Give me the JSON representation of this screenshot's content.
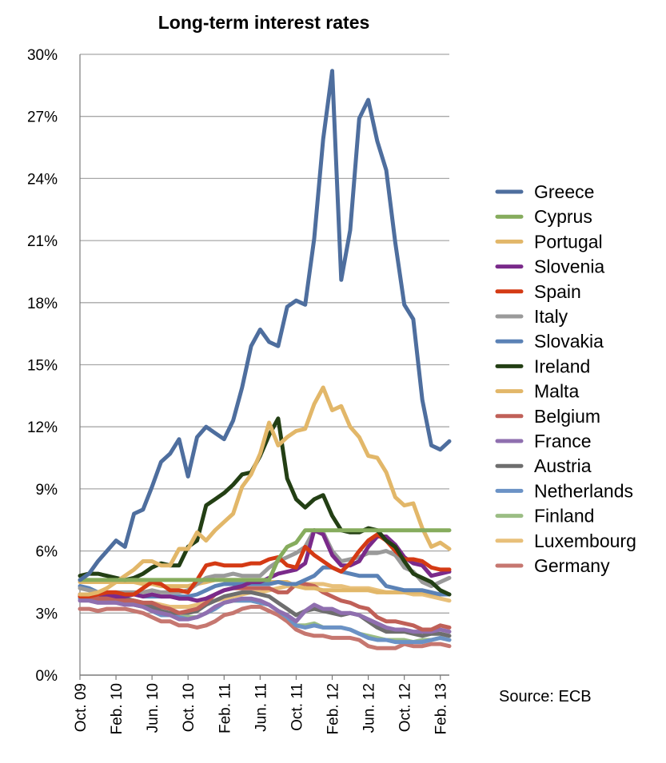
{
  "chart_data": {
    "type": "line",
    "title": "Long-term interest rates",
    "source": "Source: ECB",
    "y_ticks": [
      "0%",
      "3%",
      "6%",
      "9%",
      "12%",
      "15%",
      "18%",
      "21%",
      "24%",
      "27%",
      "30%"
    ],
    "ylim": [
      0,
      30
    ],
    "x_tick_labels": [
      "Oct. 09",
      "Feb. 10",
      "Jun. 10",
      "Oct. 10",
      "Feb. 11",
      "Jun. 11",
      "Oct. 11",
      "Feb. 12",
      "Jun. 12",
      "Oct. 12",
      "Feb. 13"
    ],
    "x_tick_index": [
      0,
      4,
      8,
      12,
      16,
      20,
      24,
      28,
      32,
      36,
      40
    ],
    "x_count": 42,
    "grid": true,
    "legend_position": "right",
    "series": [
      {
        "name": "Germany",
        "color": "#c67770",
        "values": [
          3.2,
          3.2,
          3.1,
          3.2,
          3.2,
          3.2,
          3.1,
          3.0,
          2.8,
          2.6,
          2.6,
          2.4,
          2.4,
          2.3,
          2.4,
          2.6,
          2.9,
          3.0,
          3.2,
          3.3,
          3.3,
          3.1,
          2.9,
          2.6,
          2.2,
          2.0,
          1.9,
          1.9,
          1.8,
          1.8,
          1.8,
          1.7,
          1.4,
          1.3,
          1.3,
          1.3,
          1.5,
          1.4,
          1.4,
          1.5,
          1.5,
          1.4
        ]
      },
      {
        "name": "Luxembourg",
        "color": "#e8c07a",
        "values": [
          3.8,
          3.8,
          3.7,
          3.7,
          3.6,
          3.6,
          3.6,
          3.5,
          3.5,
          3.4,
          3.3,
          3.3,
          3.3,
          3.4,
          3.5,
          3.6,
          3.7,
          3.8,
          3.9,
          4.0,
          4.0,
          4.1,
          4.2,
          4.3,
          4.3,
          4.4,
          4.4,
          4.4,
          4.3,
          4.3,
          4.2,
          4.2,
          4.2,
          4.1,
          4.0,
          4.0,
          4.0,
          3.9,
          3.9,
          3.8,
          3.7,
          3.6
        ]
      },
      {
        "name": "Finland",
        "color": "#9bbd84",
        "values": [
          3.8,
          3.8,
          3.7,
          3.7,
          3.6,
          3.5,
          3.4,
          3.3,
          3.1,
          2.9,
          2.9,
          2.8,
          2.8,
          2.8,
          3.0,
          3.2,
          3.5,
          3.6,
          3.6,
          3.6,
          3.5,
          3.4,
          3.1,
          2.8,
          2.4,
          2.4,
          2.5,
          2.3,
          2.3,
          2.3,
          2.2,
          2.0,
          1.9,
          1.8,
          1.7,
          1.7,
          1.7,
          1.6,
          1.7,
          1.7,
          1.8,
          1.7
        ]
      },
      {
        "name": "Netherlands",
        "color": "#6b92c6",
        "values": [
          3.7,
          3.7,
          3.6,
          3.6,
          3.5,
          3.5,
          3.4,
          3.3,
          3.1,
          2.9,
          2.9,
          2.8,
          2.7,
          2.8,
          3.0,
          3.2,
          3.5,
          3.6,
          3.6,
          3.6,
          3.5,
          3.4,
          3.1,
          2.8,
          2.4,
          2.3,
          2.4,
          2.3,
          2.3,
          2.3,
          2.2,
          2.0,
          1.8,
          1.7,
          1.7,
          1.6,
          1.6,
          1.6,
          1.6,
          1.7,
          1.8,
          1.7
        ]
      },
      {
        "name": "Austria",
        "color": "#6e6e6e",
        "values": [
          3.9,
          3.9,
          3.9,
          3.8,
          3.8,
          3.7,
          3.6,
          3.5,
          3.3,
          3.1,
          3.0,
          3.0,
          3.0,
          3.1,
          3.4,
          3.6,
          3.8,
          3.9,
          4.0,
          4.0,
          3.9,
          3.8,
          3.5,
          3.2,
          2.9,
          3.1,
          3.2,
          3.1,
          3.0,
          2.9,
          3.0,
          2.9,
          2.6,
          2.3,
          2.1,
          2.1,
          2.1,
          2.0,
          1.9,
          2.0,
          2.0,
          1.9
        ]
      },
      {
        "name": "France",
        "color": "#8f6faf",
        "values": [
          3.6,
          3.6,
          3.5,
          3.5,
          3.5,
          3.4,
          3.4,
          3.3,
          3.1,
          3.0,
          2.9,
          2.7,
          2.7,
          2.8,
          3.0,
          3.3,
          3.5,
          3.6,
          3.7,
          3.7,
          3.6,
          3.4,
          3.1,
          2.9,
          2.6,
          3.1,
          3.4,
          3.2,
          3.2,
          3.0,
          3.0,
          2.9,
          2.7,
          2.5,
          2.3,
          2.2,
          2.2,
          2.1,
          2.1,
          2.1,
          2.2,
          2.1
        ]
      },
      {
        "name": "Belgium",
        "color": "#c06058",
        "values": [
          3.8,
          3.8,
          3.7,
          3.7,
          3.7,
          3.6,
          3.6,
          3.5,
          3.5,
          3.3,
          3.2,
          3.0,
          3.1,
          3.2,
          3.5,
          3.9,
          4.1,
          4.2,
          4.2,
          4.2,
          4.2,
          4.2,
          4.0,
          4.0,
          4.4,
          4.4,
          4.3,
          4.0,
          3.8,
          3.6,
          3.5,
          3.3,
          3.2,
          2.8,
          2.6,
          2.6,
          2.5,
          2.4,
          2.2,
          2.2,
          2.4,
          2.3
        ]
      },
      {
        "name": "Malta",
        "color": "#e2b769",
        "values": [
          4.5,
          4.5,
          4.5,
          4.5,
          4.5,
          4.5,
          4.5,
          4.4,
          4.4,
          4.3,
          4.3,
          4.3,
          4.3,
          4.4,
          4.5,
          4.6,
          4.6,
          4.6,
          4.6,
          4.5,
          4.5,
          4.5,
          4.5,
          4.5,
          4.3,
          4.2,
          4.2,
          4.1,
          4.1,
          4.1,
          4.1,
          4.1,
          4.1,
          4.0,
          4.0,
          4.0,
          4.0,
          4.0,
          4.0,
          3.9,
          3.9,
          3.9
        ]
      },
      {
        "name": "Slovakia",
        "color": "#5b82b6",
        "values": [
          4.3,
          4.2,
          4.0,
          3.9,
          3.9,
          3.9,
          3.9,
          3.8,
          3.8,
          3.8,
          3.8,
          3.8,
          3.8,
          3.9,
          4.1,
          4.3,
          4.4,
          4.4,
          4.4,
          4.4,
          4.4,
          4.4,
          4.5,
          4.4,
          4.4,
          4.6,
          4.8,
          5.2,
          5.2,
          5.0,
          4.9,
          4.8,
          4.8,
          4.8,
          4.3,
          4.2,
          4.1,
          4.1,
          4.1,
          4.0,
          3.9,
          3.9
        ]
      },
      {
        "name": "Italy",
        "color": "#9a9a9a",
        "values": [
          4.2,
          4.1,
          4.0,
          4.0,
          4.0,
          4.0,
          4.0,
          4.0,
          4.1,
          4.0,
          4.0,
          4.0,
          4.1,
          4.4,
          4.7,
          4.8,
          4.8,
          4.9,
          4.8,
          4.8,
          4.8,
          5.2,
          5.5,
          5.7,
          5.9,
          6.2,
          7.0,
          6.9,
          6.0,
          5.5,
          5.6,
          5.7,
          5.9,
          5.9,
          6.0,
          5.8,
          5.2,
          5.0,
          4.5,
          4.3,
          4.5,
          4.7
        ]
      },
      {
        "name": "Slovenia",
        "color": "#7a2a8a",
        "values": [
          3.9,
          3.9,
          3.9,
          3.9,
          3.8,
          3.8,
          3.9,
          3.8,
          3.9,
          3.8,
          3.8,
          3.7,
          3.7,
          3.6,
          3.7,
          3.9,
          4.1,
          4.2,
          4.3,
          4.5,
          4.5,
          4.7,
          4.9,
          5.0,
          5.1,
          5.4,
          7.0,
          6.8,
          5.8,
          5.3,
          5.3,
          5.5,
          6.2,
          6.7,
          6.7,
          6.3,
          5.7,
          5.4,
          5.3,
          4.8,
          4.9,
          5.0
        ]
      },
      {
        "name": "Spain",
        "color": "#d43a14",
        "values": [
          3.8,
          3.8,
          3.9,
          4.0,
          4.0,
          3.9,
          3.9,
          4.2,
          4.5,
          4.4,
          4.1,
          4.1,
          4.0,
          4.6,
          5.3,
          5.4,
          5.3,
          5.3,
          5.3,
          5.4,
          5.4,
          5.6,
          5.7,
          5.3,
          5.2,
          6.2,
          5.8,
          5.5,
          5.2,
          5.0,
          5.4,
          6.0,
          6.5,
          6.8,
          6.5,
          6.0,
          5.6,
          5.6,
          5.5,
          5.2,
          5.1,
          5.1
        ]
      },
      {
        "name": "Ireland",
        "color": "#233f14",
        "values": [
          4.8,
          4.9,
          4.9,
          4.8,
          4.7,
          4.6,
          4.7,
          4.9,
          5.2,
          5.4,
          5.3,
          5.3,
          6.2,
          6.5,
          8.2,
          8.5,
          8.8,
          9.2,
          9.7,
          9.8,
          10.6,
          11.6,
          12.4,
          9.5,
          8.5,
          8.1,
          8.5,
          8.7,
          7.7,
          7.0,
          6.9,
          6.9,
          7.1,
          7.0,
          6.5,
          6.2,
          5.5,
          4.9,
          4.7,
          4.5,
          4.1,
          3.9
        ]
      },
      {
        "name": "Portugal",
        "color": "#e2b769",
        "values": [
          3.9,
          3.9,
          4.0,
          4.2,
          4.5,
          4.8,
          5.1,
          5.5,
          5.5,
          5.3,
          5.3,
          6.1,
          6.1,
          6.9,
          6.5,
          7.0,
          7.4,
          7.8,
          9.1,
          9.7,
          10.7,
          12.2,
          11.1,
          11.5,
          11.8,
          11.9,
          13.1,
          13.9,
          12.8,
          13.0,
          12.0,
          11.5,
          10.6,
          10.5,
          9.8,
          8.6,
          8.2,
          8.3,
          7.1,
          6.2,
          6.4,
          6.1
        ]
      },
      {
        "name": "Cyprus",
        "color": "#86ac5d",
        "values": [
          4.6,
          4.6,
          4.6,
          4.6,
          4.6,
          4.6,
          4.6,
          4.6,
          4.6,
          4.6,
          4.6,
          4.6,
          4.6,
          4.6,
          4.6,
          4.6,
          4.6,
          4.6,
          4.6,
          4.6,
          4.6,
          4.6,
          5.6,
          6.2,
          6.4,
          7.0,
          7.0,
          7.0,
          7.0,
          7.0,
          7.0,
          7.0,
          7.0,
          7.0,
          7.0,
          7.0,
          7.0,
          7.0,
          7.0,
          7.0,
          7.0,
          7.0
        ]
      },
      {
        "name": "Greece",
        "color": "#4e6e9e",
        "values": [
          4.6,
          4.9,
          5.5,
          6.0,
          6.5,
          6.2,
          7.8,
          8.0,
          9.1,
          10.3,
          10.7,
          11.4,
          9.6,
          11.5,
          12.0,
          11.7,
          11.4,
          12.3,
          13.9,
          15.9,
          16.7,
          16.1,
          15.9,
          17.8,
          18.1,
          17.9,
          21.1,
          25.9,
          29.2,
          19.1,
          21.5,
          26.9,
          27.8,
          25.8,
          24.4,
          20.9,
          17.9,
          17.2,
          13.3,
          11.1,
          10.9,
          11.3
        ]
      }
    ],
    "legend_order": [
      "Greece",
      "Cyprus",
      "Portugal",
      "Slovenia",
      "Spain",
      "Italy",
      "Slovakia",
      "Ireland",
      "Malta",
      "Belgium",
      "France",
      "Austria",
      "Netherlands",
      "Finland",
      "Luxembourg",
      "Germany"
    ]
  }
}
